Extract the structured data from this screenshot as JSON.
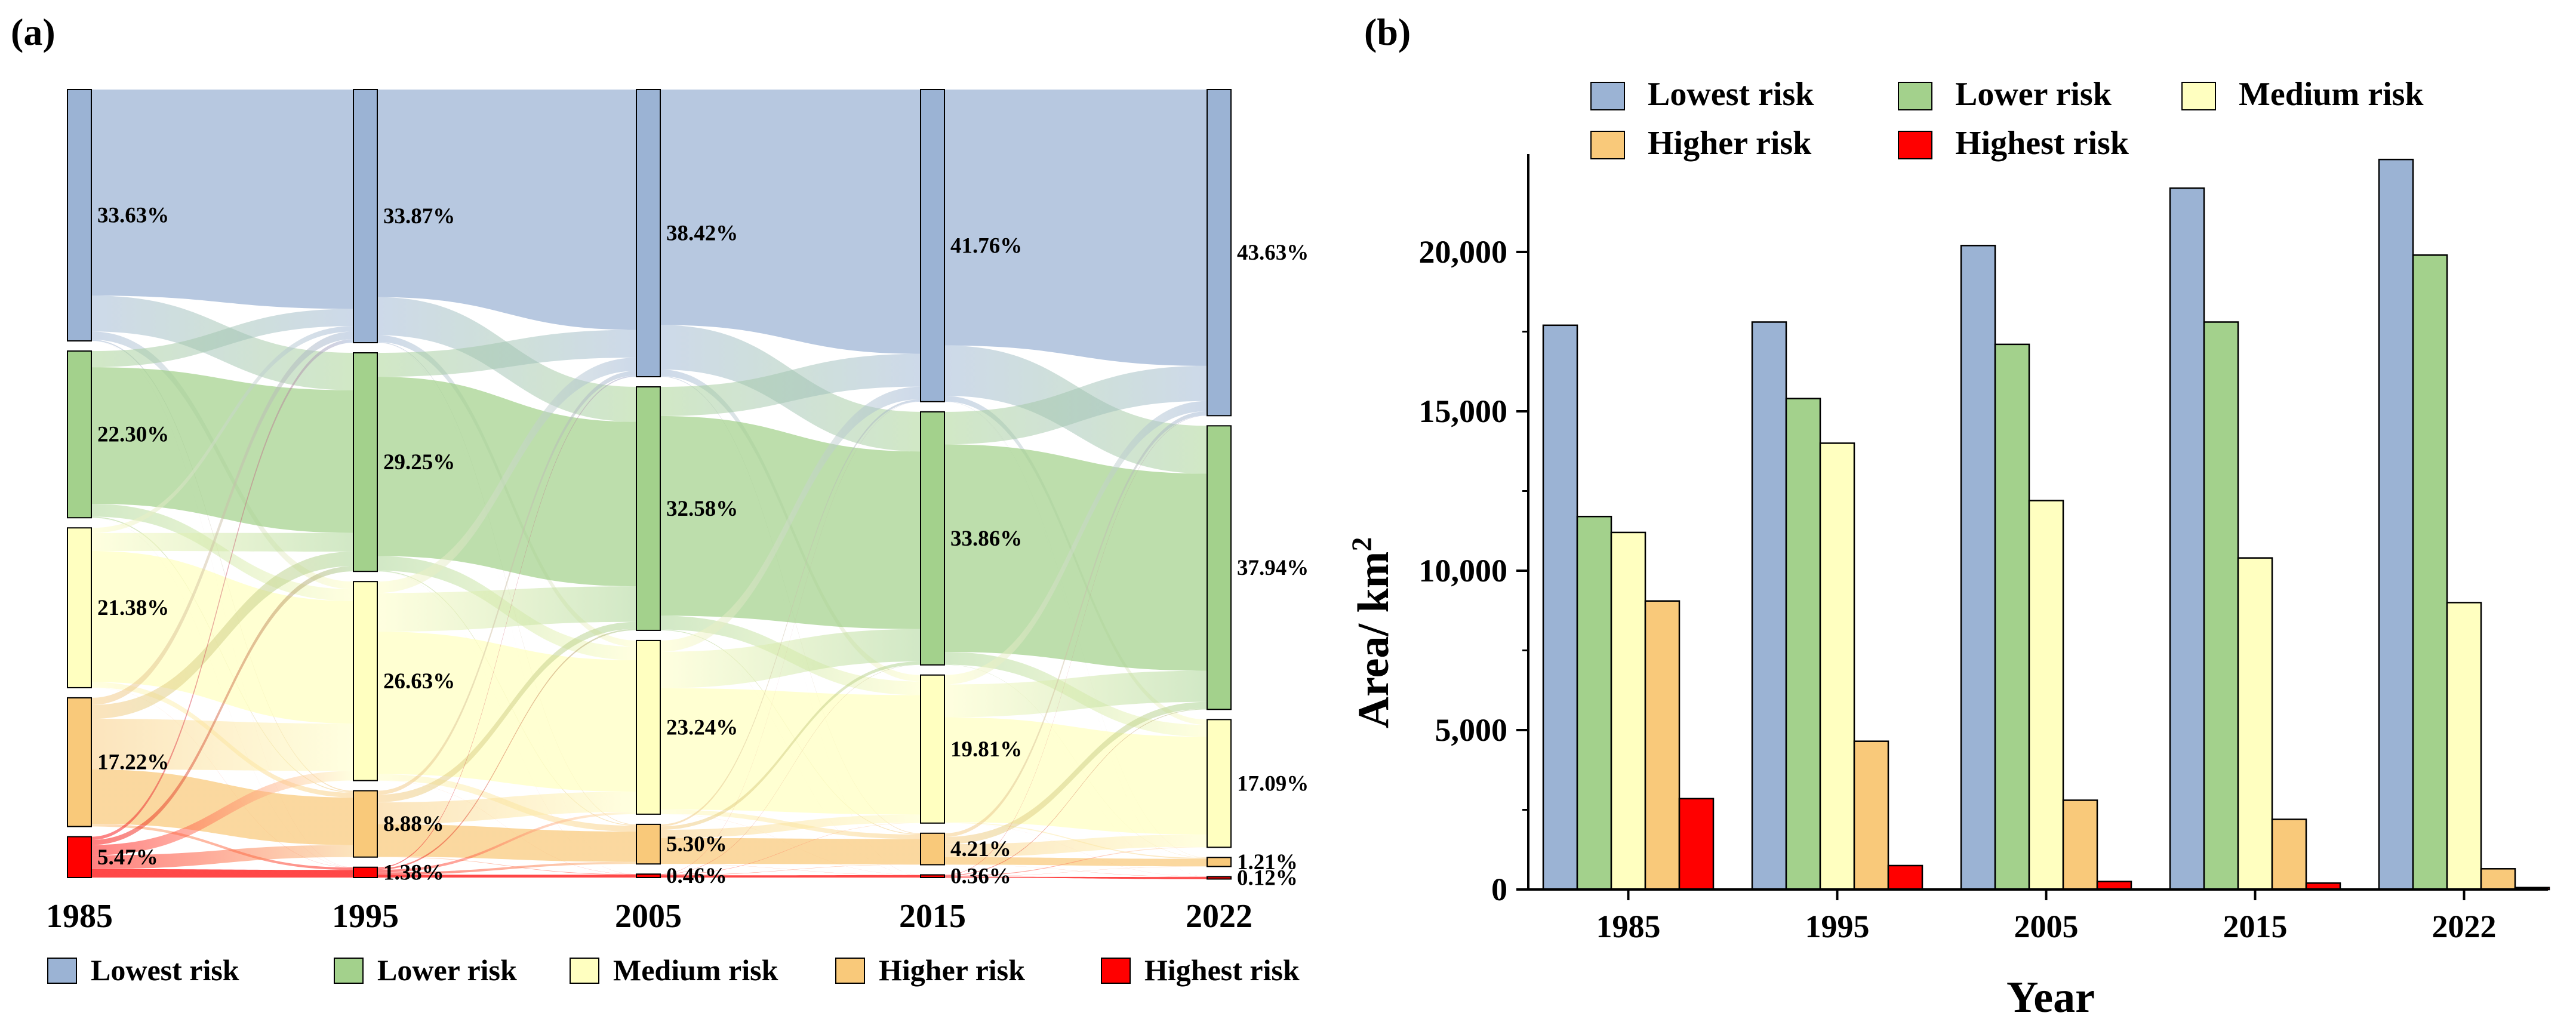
{
  "colors": {
    "lowest": "#9bb3d4",
    "lower": "#a3d18c",
    "medium": "#ffffc0",
    "higher": "#f9c97a",
    "highest": "#ff0000"
  },
  "chart_data": [
    {
      "type": "sankey",
      "panel_label": "(a)",
      "years": [
        "1985",
        "1995",
        "2005",
        "2015",
        "2022"
      ],
      "categories": [
        "Lowest risk",
        "Lower risk",
        "Medium risk",
        "Higher risk",
        "Highest risk"
      ],
      "percentages": [
        [
          "33.63%",
          "22.30%",
          "21.38%",
          "17.22%",
          "5.47%"
        ],
        [
          "33.87%",
          "29.25%",
          "26.63%",
          "8.88%",
          "1.38%"
        ],
        [
          "38.42%",
          "32.58%",
          "23.24%",
          "5.30%",
          "0.46%"
        ],
        [
          "41.76%",
          "33.86%",
          "19.81%",
          "4.21%",
          "0.36%"
        ],
        [
          "43.63%",
          "37.94%",
          "17.09%",
          "1.21%",
          "0.12%"
        ]
      ],
      "legend": [
        "Lowest risk",
        "Lower risk",
        "Medium risk",
        "Higher risk",
        "Highest risk"
      ]
    },
    {
      "type": "bar",
      "panel_label": "(b)",
      "categories": [
        "1985",
        "1995",
        "2005",
        "2015",
        "2022"
      ],
      "series": [
        {
          "name": "Lowest risk",
          "values": [
            17700,
            17800,
            20200,
            22000,
            22900
          ]
        },
        {
          "name": "Lower risk",
          "values": [
            11700,
            15400,
            17100,
            17800,
            19900
          ]
        },
        {
          "name": "Medium risk",
          "values": [
            11200,
            14000,
            12200,
            10400,
            9000
          ]
        },
        {
          "name": "Higher risk",
          "values": [
            9050,
            4650,
            2800,
            2200,
            650
          ]
        },
        {
          "name": "Highest risk",
          "values": [
            2850,
            750,
            250,
            200,
            60
          ]
        }
      ],
      "xlabel": "Year",
      "ylabel": "Area/ km",
      "ylabel_sup": "2",
      "yticks": [
        "0",
        "5,000",
        "10,000",
        "15,000",
        "20,000"
      ],
      "ylim": [
        0,
        23000
      ]
    }
  ]
}
